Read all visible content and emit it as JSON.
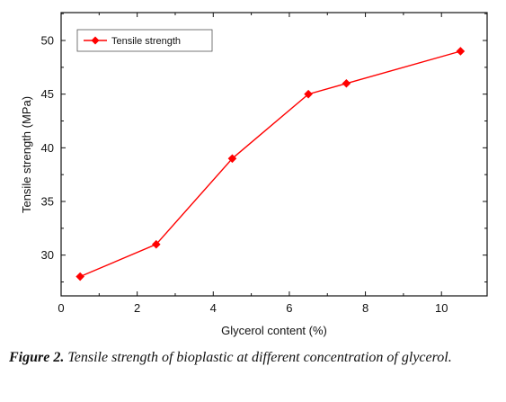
{
  "chart_data": {
    "type": "line",
    "title": "",
    "xlabel": "Glycerol content (%)",
    "ylabel": "Tensile strength (MPa)",
    "xlim": [
      0,
      11.2
    ],
    "ylim": [
      26.2,
      52.6
    ],
    "x_ticks": [
      0,
      2,
      4,
      6,
      8,
      10
    ],
    "y_ticks": [
      30,
      35,
      40,
      45,
      50
    ],
    "grid": false,
    "legend_position": "top-left",
    "series": [
      {
        "name": "Tensile strength",
        "color": "#ff0000",
        "marker": "diamond",
        "x": [
          0.5,
          2.5,
          4.5,
          6.5,
          7.5,
          10.5
        ],
        "y": [
          28,
          31,
          39,
          45,
          46,
          49
        ]
      }
    ]
  },
  "caption": {
    "label": "Figure 2.",
    "text": "Tensile strength of bioplastic at different concentration of glycerol."
  }
}
